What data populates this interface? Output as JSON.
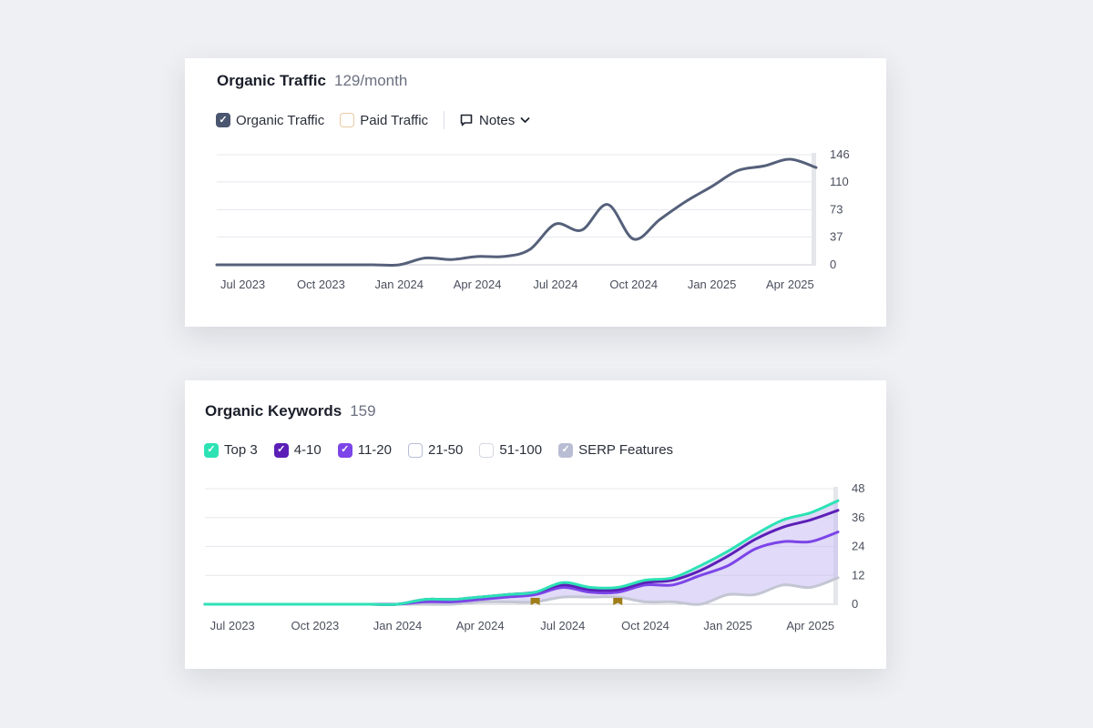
{
  "organic_traffic": {
    "title": "Organic Traffic",
    "metric": "129/month",
    "legend": [
      {
        "label": "Organic Traffic",
        "checked": true,
        "color": "#4b5670"
      },
      {
        "label": "Paid Traffic",
        "checked": false,
        "color": "#e9c9a3"
      }
    ],
    "notes_label": "Notes",
    "notes_icon": "speech-bubble-icon",
    "notes_dropdown_icon": "chevron-down-icon"
  },
  "organic_keywords": {
    "title": "Organic Keywords",
    "metric": "159",
    "legend": [
      {
        "label": "Top 3",
        "checked": true,
        "color": "#2de2b5"
      },
      {
        "label": "4-10",
        "checked": true,
        "color": "#5b1fb7"
      },
      {
        "label": "11-20",
        "checked": true,
        "color": "#7c45e8"
      },
      {
        "label": "21-50",
        "checked": false,
        "color": "#b9bdd6"
      },
      {
        "label": "51-100",
        "checked": false,
        "color": "#d5d8e2"
      },
      {
        "label": "SERP Features",
        "checked": true,
        "color": "#b9bdd3"
      }
    ]
  },
  "chart_data": [
    {
      "type": "line",
      "title": "Organic Traffic",
      "x_tick_labels": [
        "Jul 2023",
        "Oct 2023",
        "Jan 2024",
        "Apr 2024",
        "Jul 2024",
        "Oct 2024",
        "Jan 2025",
        "Apr 2025"
      ],
      "y_ticks": [
        0,
        37,
        73,
        110,
        146
      ],
      "ylim": [
        0,
        146
      ],
      "grid": true,
      "y_axis_side": "right",
      "x": [
        "2023-06",
        "2023-07",
        "2023-08",
        "2023-09",
        "2023-10",
        "2023-11",
        "2023-12",
        "2024-01",
        "2024-02",
        "2024-03",
        "2024-04",
        "2024-05",
        "2024-06",
        "2024-07",
        "2024-08",
        "2024-09",
        "2024-10",
        "2024-11",
        "2024-12",
        "2025-01",
        "2025-02",
        "2025-03",
        "2025-04",
        "2025-05"
      ],
      "series": [
        {
          "name": "Organic Traffic",
          "color": "#55607a",
          "values": [
            0,
            0,
            0,
            0,
            0,
            0,
            0,
            0,
            9,
            7,
            11,
            11,
            20,
            54,
            46,
            80,
            34,
            60,
            84,
            104,
            125,
            131,
            140,
            129
          ]
        }
      ]
    },
    {
      "type": "area",
      "title": "Organic Keywords",
      "x_tick_labels": [
        "Jul 2023",
        "Oct 2023",
        "Jan 2024",
        "Apr 2024",
        "Jul 2024",
        "Oct 2024",
        "Jan 2025",
        "Apr 2025"
      ],
      "y_ticks": [
        0,
        12,
        24,
        36,
        48
      ],
      "ylim": [
        0,
        48
      ],
      "grid": true,
      "y_axis_side": "right",
      "x": [
        "2023-06",
        "2023-07",
        "2023-08",
        "2023-09",
        "2023-10",
        "2023-11",
        "2023-12",
        "2024-01",
        "2024-02",
        "2024-03",
        "2024-04",
        "2024-05",
        "2024-06",
        "2024-07",
        "2024-08",
        "2024-09",
        "2024-10",
        "2024-11",
        "2024-12",
        "2025-01",
        "2025-02",
        "2025-03",
        "2025-04",
        "2025-05"
      ],
      "series": [
        {
          "name": "Top 3",
          "color": "#2de2b5",
          "values": [
            0,
            0,
            0,
            0,
            0,
            0,
            0,
            0,
            2,
            2,
            3,
            4,
            5,
            9,
            7,
            7,
            10,
            11,
            16,
            22,
            29,
            35,
            38,
            43
          ]
        },
        {
          "name": "4-10",
          "color": "#5b1fb7",
          "values": [
            0,
            0,
            0,
            0,
            0,
            0,
            0,
            0,
            2,
            2,
            3,
            4,
            5,
            8,
            6,
            6,
            9,
            10,
            14,
            20,
            27,
            32,
            35,
            39
          ]
        },
        {
          "name": "11-20",
          "color": "#7c45e8",
          "values": [
            0,
            0,
            0,
            0,
            0,
            0,
            0,
            0,
            1,
            1,
            2,
            3,
            4,
            7,
            5,
            5,
            8,
            8,
            12,
            16,
            23,
            26,
            26,
            30
          ]
        },
        {
          "name": "SERP Features",
          "color": "#c3c6d3",
          "values": [
            0,
            0,
            0,
            0,
            0,
            0,
            0,
            0,
            0,
            0,
            1,
            1,
            1,
            3,
            3,
            3,
            1,
            1,
            0,
            4,
            4,
            8,
            7,
            11
          ]
        }
      ],
      "markers": [
        {
          "x": "2024-06",
          "icon": "flag-icon",
          "color": "#a07d18"
        },
        {
          "x": "2024-09",
          "icon": "flag-icon",
          "color": "#a07d18"
        }
      ]
    }
  ]
}
